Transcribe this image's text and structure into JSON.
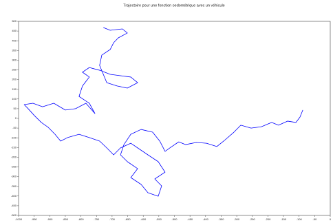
{
  "chart_data": {
    "type": "line",
    "title": "Trajectoire pour une fonction oedométrique avec un véhicule",
    "color": "#0000ff",
    "x": [
      -88,
      -97,
      -110,
      -137,
      -166,
      -188,
      -221,
      -254,
      -287,
      -309,
      -342,
      -364,
      -397,
      -430,
      -464,
      -486,
      -512,
      -530,
      -547,
      -570,
      -607,
      -640,
      -662,
      -673,
      -651,
      -618,
      -640,
      -607,
      -585,
      -552,
      -541,
      -563,
      -530,
      -552,
      -585,
      -618,
      -640,
      -673,
      -695,
      -717,
      -740,
      -773,
      -806,
      -843,
      -865,
      -883,
      -905,
      -927,
      -949,
      -971,
      -982,
      -954,
      -923,
      -887,
      -850,
      -817,
      -784,
      -755,
      -773,
      -806,
      -795,
      -773,
      -795,
      -773,
      -740,
      -706,
      -673,
      -640,
      -618,
      -651,
      -684,
      -717,
      -740,
      -733,
      -706,
      -695,
      -680,
      -651,
      -667,
      -706,
      -728
    ],
    "values": [
      43,
      7,
      -21,
      -14,
      -35,
      -21,
      -43,
      -50,
      -35,
      -71,
      -117,
      -145,
      -128,
      -124,
      -135,
      -121,
      -149,
      -170,
      -117,
      -71,
      -57,
      -82,
      -135,
      -188,
      -223,
      -259,
      -305,
      -340,
      -383,
      -401,
      -348,
      -312,
      -277,
      -223,
      -188,
      -152,
      -128,
      -152,
      -188,
      -152,
      -117,
      -99,
      -82,
      -99,
      -117,
      -82,
      -46,
      -21,
      14,
      53,
      71,
      78,
      60,
      78,
      43,
      50,
      78,
      25,
      78,
      113,
      167,
      213,
      238,
      262,
      248,
      227,
      220,
      213,
      184,
      156,
      167,
      184,
      273,
      326,
      355,
      390,
      415,
      440,
      461,
      454,
      468
    ],
    "xlim": [
      -1000,
      0
    ],
    "xticks": [
      -1000,
      -950,
      -900,
      -850,
      -800,
      -750,
      -700,
      -650,
      -600,
      -550,
      -500,
      -450,
      -400,
      -350,
      -300,
      -250,
      -200,
      -150,
      -100,
      -50,
      0
    ],
    "ylim": [
      -500,
      500
    ],
    "yticks": [
      -500,
      -450,
      -400,
      -350,
      -300,
      -250,
      -200,
      -150,
      -100,
      -50,
      0,
      50,
      100,
      150,
      200,
      250,
      300,
      350,
      400,
      450,
      500
    ],
    "grid": false
  }
}
